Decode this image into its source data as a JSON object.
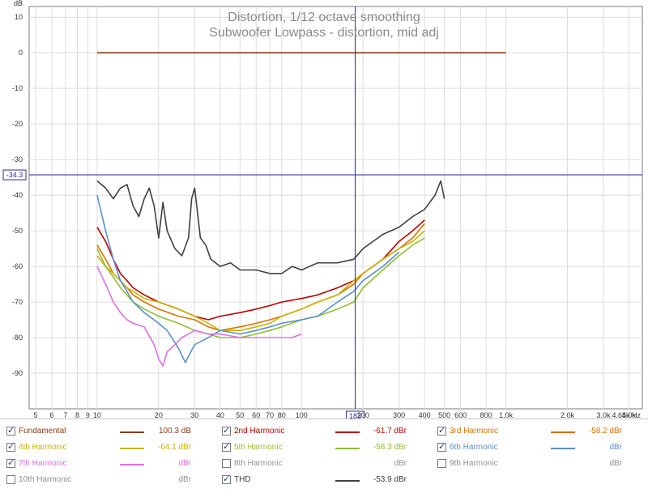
{
  "window": {
    "title": "Distortion, 1/12 octave smoothing",
    "subtitle": "Subwoofer Lowpass - distortion, mid adj"
  },
  "chart_data": {
    "type": "line",
    "title": "Distortion, 1/12 octave smoothing",
    "subtitle": "Subwoofer Lowpass - distortion, mid adj",
    "ylabel": "dB",
    "xlabel": "Hz",
    "x_scale": "log",
    "xlim": [
      4.65,
      4650
    ],
    "ylim": [
      -100,
      13
    ],
    "grid": true,
    "y_ticks": [
      10,
      0,
      -10,
      -20,
      -30,
      -40,
      -50,
      -60,
      -70,
      -80,
      -90
    ],
    "x_ticks": [
      {
        "v": 5,
        "label": "5"
      },
      {
        "v": 6,
        "label": "6"
      },
      {
        "v": 7,
        "label": "7"
      },
      {
        "v": 8,
        "label": "8"
      },
      {
        "v": 9,
        "label": "9"
      },
      {
        "v": 10,
        "label": "10"
      },
      {
        "v": 20,
        "label": "20"
      },
      {
        "v": 30,
        "label": "30"
      },
      {
        "v": 40,
        "label": "40"
      },
      {
        "v": 50,
        "label": "50"
      },
      {
        "v": 60,
        "label": "60"
      },
      {
        "v": 70,
        "label": "70"
      },
      {
        "v": 80,
        "label": "80"
      },
      {
        "v": 100,
        "label": "100"
      },
      {
        "v": 200,
        "label": "200"
      },
      {
        "v": 300,
        "label": "300"
      },
      {
        "v": 400,
        "label": "400"
      },
      {
        "v": 500,
        "label": "500"
      },
      {
        "v": 600,
        "label": "600"
      },
      {
        "v": 800,
        "label": "800"
      },
      {
        "v": 1000,
        "label": "1.0k"
      },
      {
        "v": 2000,
        "label": "2.0k"
      },
      {
        "v": 3000,
        "label": "3.0k"
      },
      {
        "v": 4000,
        "label": "4.0k"
      },
      {
        "v": 4650,
        "label": "4.65k Hz"
      }
    ],
    "cursor": {
      "x": 183,
      "y": -34.3,
      "x_label": "183",
      "y_label": "-34.3"
    },
    "series": [
      {
        "name": "Fundamental",
        "color": "#8b3a1a",
        "x": [
          10,
          1000
        ],
        "y": [
          0,
          0
        ]
      },
      {
        "name": "THD",
        "color": "#404040",
        "x": [
          10,
          11,
          12,
          13,
          14,
          15,
          16,
          17,
          18,
          19,
          20,
          21,
          22,
          24,
          26,
          28,
          29,
          30,
          31,
          32,
          34,
          36,
          40,
          45,
          50,
          60,
          70,
          80,
          90,
          100,
          120,
          150,
          180,
          200,
          250,
          300,
          350,
          400,
          450,
          480,
          500
        ],
        "y": [
          -36,
          -38,
          -41,
          -38,
          -37,
          -43,
          -46,
          -41,
          -38,
          -43,
          -52,
          -42,
          -50,
          -55,
          -57,
          -52,
          -41,
          -38,
          -45,
          -52,
          -54,
          -58,
          -60,
          -59,
          -61,
          -61,
          -62,
          -62,
          -60,
          -61,
          -59,
          -59,
          -58,
          -55,
          -51,
          -49,
          -46,
          -44,
          -40,
          -36,
          -41
        ]
      },
      {
        "name": "2nd Harmonic",
        "color": "#c00000",
        "x": [
          10,
          11,
          12,
          13,
          14,
          15,
          17,
          20,
          25,
          30,
          35,
          40,
          50,
          60,
          70,
          80,
          100,
          120,
          150,
          180,
          200,
          250,
          300,
          350,
          400
        ],
        "y": [
          -49,
          -53,
          -58,
          -62,
          -64,
          -66,
          -68,
          -70,
          -72,
          -74,
          -75,
          -74,
          -73,
          -72,
          -71,
          -70,
          -69,
          -68,
          -66,
          -64,
          -62,
          -58,
          -53,
          -50,
          -47
        ]
      },
      {
        "name": "3rd Harmonic",
        "color": "#e07000",
        "x": [
          10,
          11,
          12,
          13,
          14,
          15,
          17,
          20,
          25,
          30,
          35,
          40,
          50,
          60,
          70,
          80,
          100,
          120,
          150,
          180,
          200,
          250,
          300,
          350,
          400
        ],
        "y": [
          -54,
          -58,
          -62,
          -64,
          -66,
          -68,
          -70,
          -72,
          -74,
          -75,
          -77,
          -78,
          -77,
          -76,
          -75,
          -74,
          -72,
          -70,
          -68,
          -65,
          -62,
          -58,
          -55,
          -52,
          -48
        ]
      },
      {
        "name": "4th Harmonic",
        "color": "#c8b400",
        "x": [
          10,
          11,
          12,
          13,
          14,
          15,
          17,
          20,
          25,
          30,
          35,
          40,
          50,
          60,
          70,
          80,
          100,
          120,
          150,
          180,
          200,
          250,
          300,
          350,
          400
        ],
        "y": [
          -57,
          -60,
          -62,
          -64,
          -66,
          -67,
          -69,
          -70,
          -72,
          -74,
          -76,
          -78,
          -78,
          -77,
          -76,
          -74,
          -72,
          -70,
          -68,
          -64,
          -62,
          -58,
          -55,
          -53,
          -50
        ]
      },
      {
        "name": "5th Harmonic",
        "color": "#90c030",
        "x": [
          10,
          11,
          12,
          13,
          14,
          15,
          17,
          20,
          25,
          30,
          35,
          40,
          50,
          60,
          70,
          80,
          100,
          120,
          150,
          180,
          200,
          250,
          300,
          350,
          400
        ],
        "y": [
          -55,
          -60,
          -63,
          -66,
          -68,
          -70,
          -72,
          -74,
          -76,
          -78,
          -79,
          -80,
          -80,
          -79,
          -78,
          -77,
          -75,
          -74,
          -72,
          -70,
          -66,
          -61,
          -57,
          -54,
          -52
        ]
      },
      {
        "name": "6th Harmonic",
        "color": "#5a90d0",
        "x": [
          10,
          11,
          12,
          13,
          14,
          15,
          17,
          20,
          22,
          25,
          27,
          30,
          35,
          40,
          50,
          60,
          70,
          80,
          100,
          120,
          150,
          180,
          200,
          250,
          300
        ],
        "y": [
          -40,
          -50,
          -58,
          -64,
          -67,
          -70,
          -73,
          -76,
          -78,
          -83,
          -87,
          -82,
          -80,
          -78,
          -79,
          -78,
          -77,
          -76,
          -75,
          -74,
          -70,
          -67,
          -64,
          -60,
          -56
        ]
      },
      {
        "name": "7th Harmonic",
        "color": "#e070e0",
        "x": [
          10,
          11,
          12,
          13,
          14,
          15,
          17,
          19,
          20,
          21,
          22,
          24,
          26,
          28,
          30,
          35,
          40,
          50,
          60,
          70,
          80,
          90,
          100
        ],
        "y": [
          -60,
          -65,
          -70,
          -73,
          -75,
          -76,
          -77,
          -82,
          -86,
          -88,
          -84,
          -82,
          -80,
          -79,
          -78,
          -79,
          -79,
          -80,
          -80,
          -80,
          -80,
          -80,
          -79
        ]
      }
    ]
  },
  "legend": {
    "items": [
      {
        "name": "Fundamental",
        "value": "100.3 dB",
        "checked": true,
        "color": "#8b3a1a"
      },
      {
        "name": "2nd Harmonic",
        "value": "-61.7 dBr",
        "checked": true,
        "color": "#c00000"
      },
      {
        "name": "3rd Harmonic",
        "value": "-58.2 dBr",
        "checked": true,
        "color": "#e07000"
      },
      {
        "name": "4th Harmonic",
        "value": "-64.1 dBr",
        "checked": true,
        "color": "#c8b400"
      },
      {
        "name": "5th Harmonic",
        "value": "-58.3 dBr",
        "checked": true,
        "color": "#90c030"
      },
      {
        "name": "6th Harmonic",
        "value": "dBr",
        "checked": true,
        "color": "#5a90d0"
      },
      {
        "name": "7th Harmonic",
        "value": "dBr",
        "checked": true,
        "color": "#e070e0"
      },
      {
        "name": "8th Harmonic",
        "value": "dBr",
        "checked": false,
        "color": "#909090"
      },
      {
        "name": "9th Harmonic",
        "value": "dBr",
        "checked": false,
        "color": "#20b0b0"
      },
      {
        "name": "10th Harmonic",
        "value": "dBr",
        "checked": false,
        "color": "#909000"
      },
      {
        "name": "THD",
        "value": "-53.9 dBr",
        "checked": true,
        "color": "#404040"
      }
    ]
  }
}
